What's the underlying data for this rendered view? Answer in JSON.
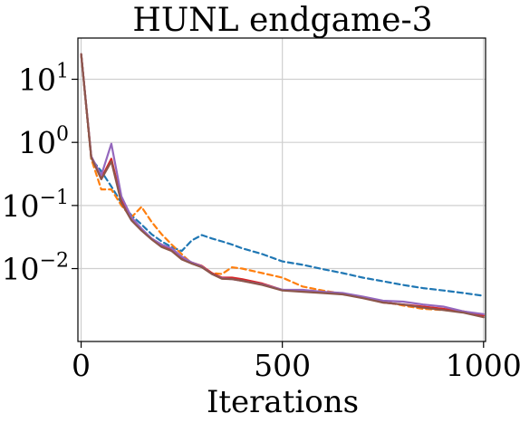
{
  "chart_data": {
    "type": "line",
    "title": "HUNL endgame-3",
    "xlabel": "Iterations",
    "ylabel": "",
    "xlim": [
      -8,
      1005
    ],
    "ylim": [
      0.0007,
      45
    ],
    "yscale": "log",
    "grid": true,
    "xticks": [
      0,
      500,
      1000
    ],
    "xtick_labels": [
      "0",
      "500",
      "1000"
    ],
    "yticks": [
      0.01,
      0.1,
      1,
      10
    ],
    "ytick_labels": [
      {
        "base": "10",
        "exp": "−2"
      },
      {
        "base": "10",
        "exp": "−1"
      },
      {
        "base": "10",
        "exp": "0"
      },
      {
        "base": "10",
        "exp": "1"
      }
    ],
    "series": [
      {
        "color": "#1f77b4",
        "dash": "6,4",
        "x": [
          0,
          25,
          50,
          75,
          100,
          125,
          150,
          175,
          200,
          225,
          250,
          275,
          300,
          325,
          350,
          375,
          400,
          450,
          500,
          550,
          600,
          650,
          700,
          750,
          800,
          850,
          900,
          950,
          1000
        ],
        "y": [
          25,
          0.55,
          0.35,
          0.2,
          0.11,
          0.07,
          0.05,
          0.035,
          0.027,
          0.022,
          0.019,
          0.028,
          0.034,
          0.03,
          0.027,
          0.024,
          0.021,
          0.017,
          0.013,
          0.0115,
          0.0098,
          0.0085,
          0.0072,
          0.0063,
          0.0055,
          0.0049,
          0.0045,
          0.0041,
          0.0037
        ]
      },
      {
        "color": "#ff7f0e",
        "dash": "6,4",
        "x": [
          0,
          25,
          50,
          75,
          100,
          125,
          150,
          175,
          200,
          225,
          250,
          275,
          300,
          325,
          350,
          375,
          400,
          450,
          500,
          550,
          600,
          650,
          700,
          750,
          800,
          850,
          900,
          950,
          1000
        ],
        "y": [
          25,
          0.55,
          0.18,
          0.18,
          0.1,
          0.065,
          0.095,
          0.055,
          0.035,
          0.024,
          0.017,
          0.012,
          0.011,
          0.0085,
          0.0082,
          0.0105,
          0.01,
          0.0085,
          0.0072,
          0.0052,
          0.0045,
          0.004,
          0.0035,
          0.003,
          0.0026,
          0.0023,
          0.0022,
          0.0021,
          0.0018
        ]
      },
      {
        "color": "#d62728",
        "dash": "",
        "x": [
          0,
          25,
          50,
          75,
          100,
          125,
          150,
          175,
          200,
          225,
          250,
          275,
          300,
          325,
          350,
          375,
          400,
          450,
          500,
          550,
          600,
          650,
          700,
          750,
          800,
          850,
          900,
          950,
          1000
        ],
        "y": [
          25,
          0.6,
          0.27,
          0.55,
          0.12,
          0.06,
          0.042,
          0.03,
          0.023,
          0.02,
          0.0145,
          0.0125,
          0.011,
          0.0085,
          0.0072,
          0.0072,
          0.0068,
          0.0058,
          0.0046,
          0.0044,
          0.0042,
          0.004,
          0.0035,
          0.0029,
          0.0027,
          0.0025,
          0.0023,
          0.0021,
          0.0018
        ]
      },
      {
        "color": "#9467bd",
        "dash": "",
        "x": [
          0,
          25,
          50,
          75,
          100,
          125,
          150,
          175,
          200,
          225,
          250,
          275,
          300,
          325,
          350,
          375,
          400,
          450,
          500,
          550,
          600,
          650,
          700,
          750,
          800,
          850,
          900,
          950,
          1000
        ],
        "y": [
          25,
          0.6,
          0.3,
          0.95,
          0.14,
          0.065,
          0.043,
          0.03,
          0.024,
          0.021,
          0.0155,
          0.0125,
          0.0108,
          0.0082,
          0.007,
          0.0068,
          0.0064,
          0.0056,
          0.0046,
          0.0046,
          0.0043,
          0.0041,
          0.0036,
          0.0031,
          0.003,
          0.0027,
          0.0025,
          0.0021,
          0.0019
        ]
      },
      {
        "color": "#8c564b",
        "dash": "",
        "x": [
          0,
          25,
          50,
          75,
          100,
          125,
          150,
          175,
          200,
          225,
          250,
          275,
          300,
          325,
          350,
          375,
          400,
          450,
          500,
          550,
          600,
          650,
          700,
          750,
          800,
          850,
          900,
          950,
          1000
        ],
        "y": [
          25,
          0.58,
          0.26,
          0.5,
          0.11,
          0.058,
          0.04,
          0.029,
          0.022,
          0.019,
          0.014,
          0.012,
          0.0105,
          0.0082,
          0.0069,
          0.0068,
          0.0064,
          0.0055,
          0.0045,
          0.0043,
          0.0041,
          0.0039,
          0.0034,
          0.0029,
          0.0027,
          0.0024,
          0.0022,
          0.002,
          0.0017
        ]
      }
    ]
  }
}
